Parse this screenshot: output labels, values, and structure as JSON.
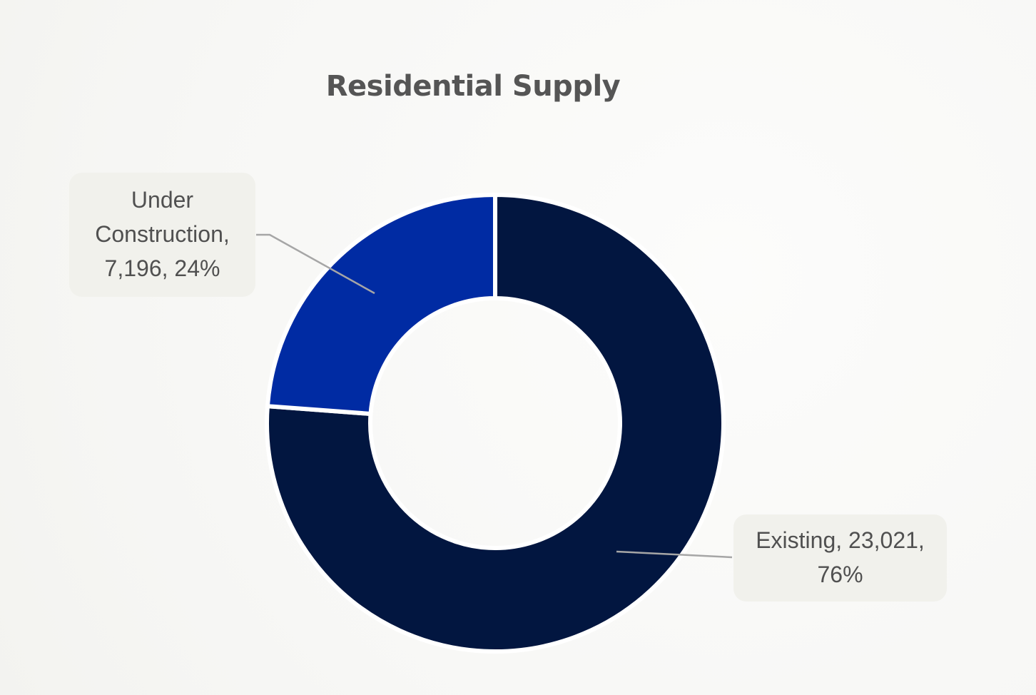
{
  "chart_data": {
    "type": "pie",
    "title": "Residential Supply",
    "categories": [
      "Existing",
      "Under Construction"
    ],
    "values": [
      23021,
      7196
    ],
    "percentages": [
      76,
      24
    ],
    "donut": true,
    "colors": [
      "#021640",
      "#002ba3"
    ],
    "labels": {
      "under_construction": [
        "Under",
        "Construction,",
        "7,196, 24%"
      ],
      "existing": [
        "Existing, 23,021,",
        "76%"
      ]
    }
  }
}
